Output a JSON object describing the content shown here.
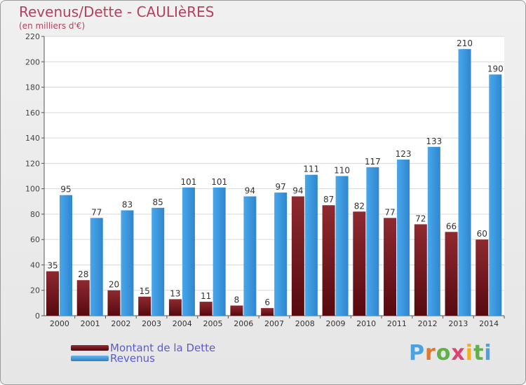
{
  "title": "Revenus/Dette - CAULIèRES",
  "subtitle": "(en milliers d'€)",
  "logo_text": "Proxiti",
  "colors": {
    "dette": "#7b1a1f",
    "revenus": "#3d96dd",
    "title": "#b5405e",
    "legend_text": "#5a5ad6"
  },
  "chart_data": {
    "type": "bar",
    "title": "Revenus/Dette - CAULIèRES",
    "subtitle": "(en milliers d'€)",
    "categories": [
      "2000",
      "2001",
      "2002",
      "2003",
      "2004",
      "2005",
      "2006",
      "2007",
      "2008",
      "2009",
      "2010",
      "2011",
      "2012",
      "2013",
      "2014"
    ],
    "series": [
      {
        "name": "Montant de la Dette",
        "color": "#7b1a1f",
        "values": [
          35,
          28,
          20,
          15,
          13,
          11,
          8,
          6,
          94,
          87,
          82,
          77,
          72,
          66,
          60
        ]
      },
      {
        "name": "Revenus",
        "color": "#3d96dd",
        "values": [
          95,
          77,
          83,
          85,
          101,
          101,
          94,
          97,
          111,
          110,
          117,
          123,
          133,
          210,
          190
        ]
      }
    ],
    "ylim": [
      0,
      220
    ],
    "yticks": [
      0,
      20,
      40,
      60,
      80,
      100,
      120,
      140,
      160,
      180,
      200,
      220
    ],
    "grid": true,
    "legend": "bottom-left"
  }
}
